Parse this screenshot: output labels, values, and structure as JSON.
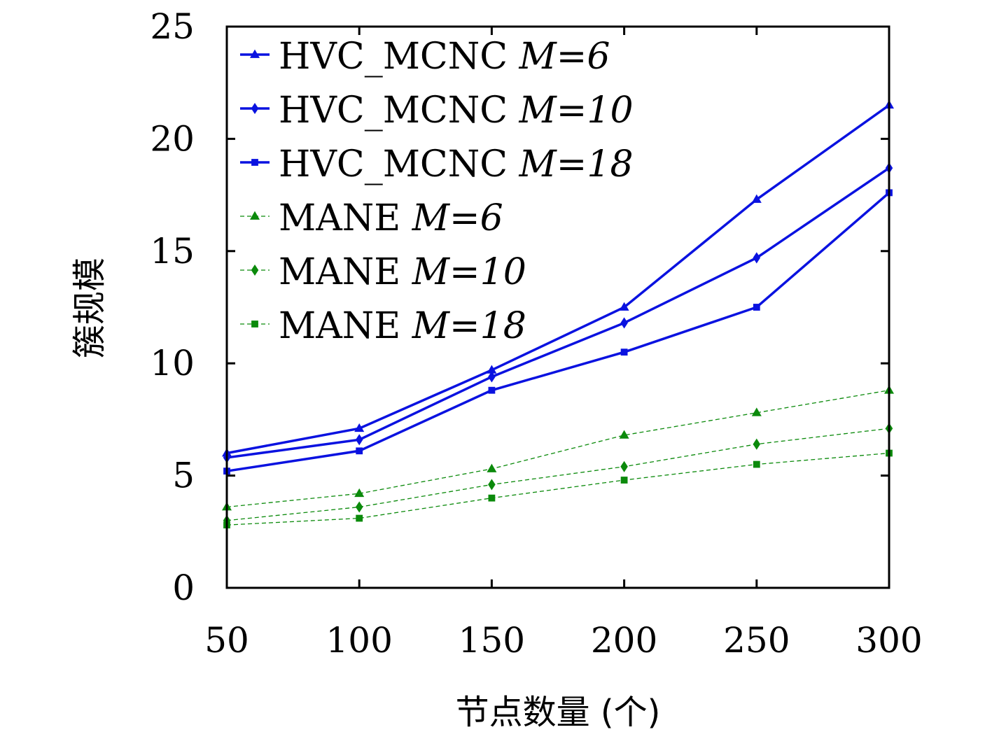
{
  "chart_data": {
    "type": "line",
    "title": "",
    "xlabel": "节点数量 (个)",
    "ylabel": "簇规模",
    "x": [
      50,
      100,
      150,
      200,
      250,
      300
    ],
    "xlim": [
      50,
      300
    ],
    "ylim": [
      0,
      25
    ],
    "xticks": [
      "50",
      "100",
      "150",
      "200",
      "250",
      "300"
    ],
    "yticks": [
      "0",
      "5",
      "10",
      "15",
      "20",
      "25"
    ],
    "grid": false,
    "legend_position": "top-left",
    "series": [
      {
        "name": "HVC_MCNC",
        "param": "M=6",
        "marker": "triangle",
        "style": "solid",
        "color": "#0a12e0",
        "values": [
          6.0,
          7.1,
          9.7,
          12.5,
          17.3,
          21.5
        ]
      },
      {
        "name": "HVC_MCNC",
        "param": "M=10",
        "marker": "diamond",
        "style": "solid",
        "color": "#0a12e0",
        "values": [
          5.8,
          6.6,
          9.4,
          11.8,
          14.7,
          18.7
        ]
      },
      {
        "name": "HVC_MCNC",
        "param": "M=18",
        "marker": "square",
        "style": "solid",
        "color": "#0a12e0",
        "values": [
          5.2,
          6.1,
          8.8,
          10.5,
          12.5,
          17.6
        ]
      },
      {
        "name": "MANE",
        "param": "M=6",
        "marker": "triangle",
        "style": "dashed",
        "color": "#0b8a0b",
        "values": [
          3.6,
          4.2,
          5.3,
          6.8,
          7.8,
          8.8
        ]
      },
      {
        "name": "MANE",
        "param": "M=10",
        "marker": "diamond",
        "style": "dashed",
        "color": "#0b8a0b",
        "values": [
          3.0,
          3.6,
          4.6,
          5.4,
          6.4,
          7.1
        ]
      },
      {
        "name": "MANE",
        "param": "M=18",
        "marker": "square",
        "style": "dashed",
        "color": "#0b8a0b",
        "values": [
          2.8,
          3.1,
          4.0,
          4.8,
          5.5,
          6.0
        ]
      }
    ]
  }
}
